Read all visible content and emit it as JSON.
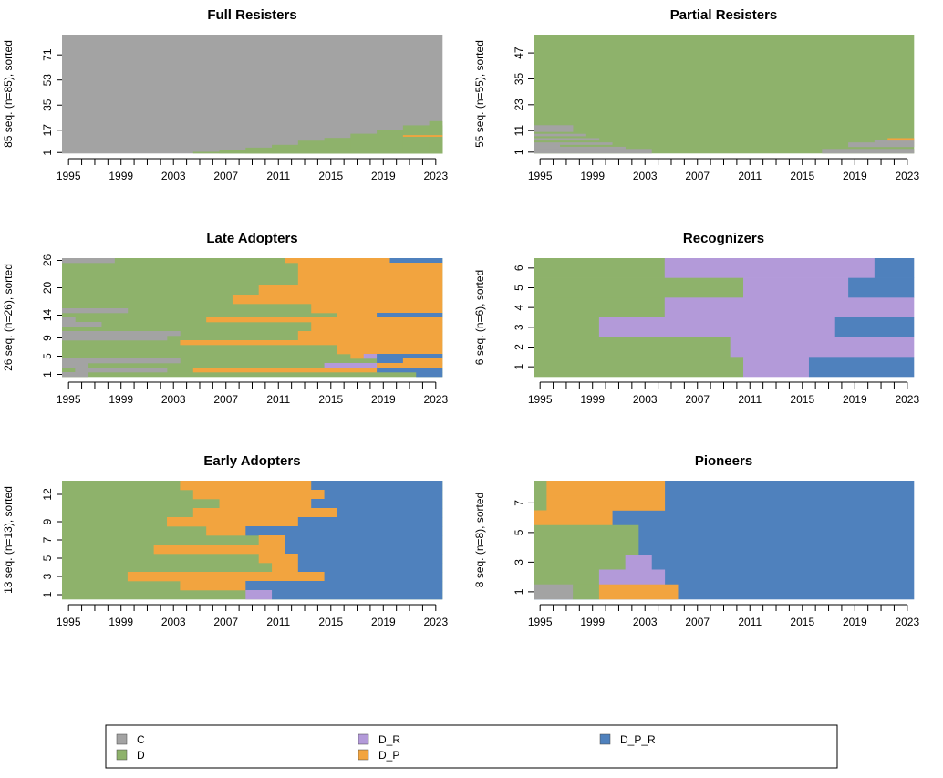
{
  "state_colors": {
    "C": "#a3a3a3",
    "D": "#8eb26b",
    "D_R": "#b39ad9",
    "D_P": "#f2a43f",
    "D_P_R": "#4f81bd"
  },
  "legend": {
    "items": [
      "C",
      "D",
      "D_R",
      "D_P",
      "D_P_R"
    ]
  },
  "chart_data": [
    {
      "type": "heatmap",
      "title": "Full Resisters",
      "ylabel": "85 seq. (n=85), sorted",
      "n_seq": 85,
      "x_start": 1995,
      "x_end": 2023,
      "x_ticks": [
        "1995",
        "1999",
        "2003",
        "2007",
        "2011",
        "2015",
        "2019",
        "2023"
      ],
      "y_ticks": [
        1,
        17,
        35,
        53,
        71
      ],
      "blocks": [
        {
          "x0": 1995,
          "x1": 2024,
          "y0": 1,
          "y1": 85,
          "state": "C"
        },
        {
          "x0": 2005,
          "x1": 2024,
          "y0": 1,
          "y1": 1,
          "state": "D"
        },
        {
          "x0": 2007,
          "x1": 2024,
          "y0": 1,
          "y1": 2,
          "state": "D"
        },
        {
          "x0": 2009,
          "x1": 2024,
          "y0": 1,
          "y1": 4,
          "state": "D"
        },
        {
          "x0": 2011,
          "x1": 2024,
          "y0": 1,
          "y1": 6,
          "state": "D"
        },
        {
          "x0": 2013,
          "x1": 2024,
          "y0": 1,
          "y1": 9,
          "state": "D"
        },
        {
          "x0": 2015,
          "x1": 2024,
          "y0": 1,
          "y1": 11,
          "state": "D"
        },
        {
          "x0": 2017,
          "x1": 2024,
          "y0": 1,
          "y1": 14,
          "state": "D"
        },
        {
          "x0": 2019,
          "x1": 2024,
          "y0": 1,
          "y1": 17,
          "state": "D"
        },
        {
          "x0": 2021,
          "x1": 2024,
          "y0": 1,
          "y1": 20,
          "state": "D"
        },
        {
          "x0": 2023,
          "x1": 2024,
          "y0": 1,
          "y1": 23,
          "state": "D"
        },
        {
          "x0": 2021,
          "x1": 2024,
          "y0": 13,
          "y1": 13,
          "state": "D_P"
        }
      ]
    },
    {
      "type": "heatmap",
      "title": "Partial Resisters",
      "ylabel": "55 seq. (n=55), sorted",
      "n_seq": 55,
      "x_start": 1995,
      "x_end": 2023,
      "x_ticks": [
        "1995",
        "1999",
        "2003",
        "2007",
        "2011",
        "2015",
        "2019",
        "2023"
      ],
      "y_ticks": [
        1,
        11,
        23,
        35,
        47
      ],
      "blocks": [
        {
          "x0": 1995,
          "x1": 2024,
          "y0": 1,
          "y1": 55,
          "state": "D"
        },
        {
          "x0": 1995,
          "x1": 1998,
          "y0": 11,
          "y1": 13,
          "state": "C"
        },
        {
          "x0": 1995,
          "x1": 1999,
          "y0": 9,
          "y1": 9,
          "state": "C"
        },
        {
          "x0": 1995,
          "x1": 2000,
          "y0": 7,
          "y1": 7,
          "state": "C"
        },
        {
          "x0": 1995,
          "x1": 2001,
          "y0": 5,
          "y1": 5,
          "state": "C"
        },
        {
          "x0": 1995,
          "x1": 2002,
          "y0": 3,
          "y1": 3,
          "state": "C"
        },
        {
          "x0": 1995,
          "x1": 2004,
          "y0": 1,
          "y1": 2,
          "state": "C"
        },
        {
          "x0": 1995,
          "x1": 1997,
          "y0": 4,
          "y1": 4,
          "state": "C"
        },
        {
          "x0": 2017,
          "x1": 2024,
          "y0": 1,
          "y1": 2,
          "state": "C"
        },
        {
          "x0": 2019,
          "x1": 2024,
          "y0": 4,
          "y1": 5,
          "state": "C"
        },
        {
          "x0": 2021,
          "x1": 2024,
          "y0": 6,
          "y1": 6,
          "state": "C"
        },
        {
          "x0": 2022,
          "x1": 2024,
          "y0": 7,
          "y1": 7,
          "state": "D_P"
        }
      ]
    },
    {
      "type": "heatmap",
      "title": "Late Adopters",
      "ylabel": "26 seq. (n=26), sorted",
      "n_seq": 26,
      "x_start": 1995,
      "x_end": 2023,
      "x_ticks": [
        "1995",
        "1999",
        "2003",
        "2007",
        "2011",
        "2015",
        "2019",
        "2023"
      ],
      "y_ticks": [
        1,
        5,
        9,
        14,
        20,
        26
      ],
      "blocks": [
        {
          "x0": 1995,
          "x1": 2024,
          "y0": 1,
          "y1": 26,
          "state": "D"
        },
        {
          "x0": 1995,
          "x1": 1999,
          "y0": 26,
          "y1": 26,
          "state": "C"
        },
        {
          "x0": 1995,
          "x1": 2000,
          "y0": 15,
          "y1": 15,
          "state": "C"
        },
        {
          "x0": 1995,
          "x1": 1996,
          "y0": 13,
          "y1": 13,
          "state": "C"
        },
        {
          "x0": 1995,
          "x1": 1998,
          "y0": 12,
          "y1": 12,
          "state": "C"
        },
        {
          "x0": 1995,
          "x1": 2004,
          "y0": 10,
          "y1": 10,
          "state": "C"
        },
        {
          "x0": 1995,
          "x1": 2003,
          "y0": 9,
          "y1": 9,
          "state": "C"
        },
        {
          "x0": 1995,
          "x1": 2004,
          "y0": 4,
          "y1": 4,
          "state": "C"
        },
        {
          "x0": 1995,
          "x1": 1997,
          "y0": 3,
          "y1": 3,
          "state": "C"
        },
        {
          "x0": 1996,
          "x1": 2003,
          "y0": 2,
          "y1": 2,
          "state": "C"
        },
        {
          "x0": 1995,
          "x1": 1997,
          "y0": 1,
          "y1": 1,
          "state": "C"
        },
        {
          "x0": 2012,
          "x1": 2020,
          "y0": 26,
          "y1": 26,
          "state": "D_P"
        },
        {
          "x0": 2020,
          "x1": 2024,
          "y0": 26,
          "y1": 26,
          "state": "D_P_R"
        },
        {
          "x0": 2013,
          "x1": 2024,
          "y0": 21,
          "y1": 25,
          "state": "D_P"
        },
        {
          "x0": 2010,
          "x1": 2024,
          "y0": 19,
          "y1": 20,
          "state": "D_P"
        },
        {
          "x0": 2008,
          "x1": 2024,
          "y0": 17,
          "y1": 18,
          "state": "D_P"
        },
        {
          "x0": 2014,
          "x1": 2024,
          "y0": 15,
          "y1": 16,
          "state": "D_P"
        },
        {
          "x0": 2016,
          "x1": 2019,
          "y0": 14,
          "y1": 14,
          "state": "D_P"
        },
        {
          "x0": 2019,
          "x1": 2024,
          "y0": 14,
          "y1": 14,
          "state": "D_P_R"
        },
        {
          "x0": 2006,
          "x1": 2024,
          "y0": 13,
          "y1": 13,
          "state": "D_P"
        },
        {
          "x0": 2014,
          "x1": 2024,
          "y0": 11,
          "y1": 12,
          "state": "D_P"
        },
        {
          "x0": 2013,
          "x1": 2024,
          "y0": 9,
          "y1": 10,
          "state": "D_P"
        },
        {
          "x0": 2004,
          "x1": 2024,
          "y0": 8,
          "y1": 8,
          "state": "D_P"
        },
        {
          "x0": 2016,
          "x1": 2024,
          "y0": 6,
          "y1": 7,
          "state": "D_P"
        },
        {
          "x0": 2017,
          "x1": 2018,
          "y0": 5,
          "y1": 5,
          "state": "D_P"
        },
        {
          "x0": 2018,
          "x1": 2019,
          "y0": 5,
          "y1": 5,
          "state": "D_R"
        },
        {
          "x0": 2019,
          "x1": 2024,
          "y0": 5,
          "y1": 5,
          "state": "D_P_R"
        },
        {
          "x0": 2019,
          "x1": 2021,
          "y0": 4,
          "y1": 4,
          "state": "D_P_R"
        },
        {
          "x0": 2021,
          "x1": 2024,
          "y0": 4,
          "y1": 4,
          "state": "D_P"
        },
        {
          "x0": 2015,
          "x1": 2019,
          "y0": 3,
          "y1": 3,
          "state": "D_R"
        },
        {
          "x0": 2019,
          "x1": 2024,
          "y0": 3,
          "y1": 3,
          "state": "D_P"
        },
        {
          "x0": 2005,
          "x1": 2019,
          "y0": 2,
          "y1": 2,
          "state": "D_P"
        },
        {
          "x0": 2019,
          "x1": 2024,
          "y0": 2,
          "y1": 2,
          "state": "D_P_R"
        },
        {
          "x0": 2022,
          "x1": 2024,
          "y0": 1,
          "y1": 1,
          "state": "D_P_R"
        }
      ]
    },
    {
      "type": "heatmap",
      "title": "Recognizers",
      "ylabel": "6 seq. (n=6), sorted",
      "n_seq": 6,
      "x_start": 1995,
      "x_end": 2023,
      "x_ticks": [
        "1995",
        "1999",
        "2003",
        "2007",
        "2011",
        "2015",
        "2019",
        "2023"
      ],
      "y_ticks": [
        1,
        2,
        3,
        4,
        5,
        6
      ],
      "blocks": [
        {
          "x0": 1995,
          "x1": 2005,
          "y0": 6,
          "y1": 6,
          "state": "D"
        },
        {
          "x0": 2005,
          "x1": 2021,
          "y0": 6,
          "y1": 6,
          "state": "D_R"
        },
        {
          "x0": 2021,
          "x1": 2024,
          "y0": 6,
          "y1": 6,
          "state": "D_P_R"
        },
        {
          "x0": 1995,
          "x1": 2011,
          "y0": 5,
          "y1": 5,
          "state": "D"
        },
        {
          "x0": 2011,
          "x1": 2019,
          "y0": 5,
          "y1": 5,
          "state": "D_R"
        },
        {
          "x0": 2019,
          "x1": 2024,
          "y0": 5,
          "y1": 5,
          "state": "D_P_R"
        },
        {
          "x0": 1995,
          "x1": 2005,
          "y0": 4,
          "y1": 4,
          "state": "D"
        },
        {
          "x0": 2005,
          "x1": 2024,
          "y0": 4,
          "y1": 4,
          "state": "D_R"
        },
        {
          "x0": 1995,
          "x1": 2000,
          "y0": 3,
          "y1": 3,
          "state": "D"
        },
        {
          "x0": 2000,
          "x1": 2018,
          "y0": 3,
          "y1": 3,
          "state": "D_R"
        },
        {
          "x0": 2018,
          "x1": 2024,
          "y0": 3,
          "y1": 3,
          "state": "D_P_R"
        },
        {
          "x0": 1995,
          "x1": 2010,
          "y0": 2,
          "y1": 2,
          "state": "D"
        },
        {
          "x0": 2010,
          "x1": 2024,
          "y0": 2,
          "y1": 2,
          "state": "D_R"
        },
        {
          "x0": 1995,
          "x1": 2011,
          "y0": 1,
          "y1": 1,
          "state": "D"
        },
        {
          "x0": 2011,
          "x1": 2016,
          "y0": 1,
          "y1": 1,
          "state": "D_R"
        },
        {
          "x0": 2016,
          "x1": 2024,
          "y0": 1,
          "y1": 1,
          "state": "D_P_R"
        }
      ]
    },
    {
      "type": "heatmap",
      "title": "Early Adopters",
      "ylabel": "13 seq. (n=13), sorted",
      "n_seq": 13,
      "x_start": 1995,
      "x_end": 2023,
      "x_ticks": [
        "1995",
        "1999",
        "2003",
        "2007",
        "2011",
        "2015",
        "2019",
        "2023"
      ],
      "y_ticks": [
        1,
        3,
        5,
        7,
        9,
        12
      ],
      "blocks": [
        {
          "x0": 1995,
          "x1": 2024,
          "y0": 1,
          "y1": 13,
          "state": "D"
        },
        {
          "x0": 2004,
          "x1": 2014,
          "y0": 13,
          "y1": 13,
          "state": "D_P"
        },
        {
          "x0": 2014,
          "x1": 2024,
          "y0": 13,
          "y1": 13,
          "state": "D_P_R"
        },
        {
          "x0": 2005,
          "x1": 2015,
          "y0": 12,
          "y1": 12,
          "state": "D_P"
        },
        {
          "x0": 2015,
          "x1": 2024,
          "y0": 12,
          "y1": 12,
          "state": "D_P_R"
        },
        {
          "x0": 2007,
          "x1": 2014,
          "y0": 11,
          "y1": 11,
          "state": "D_P"
        },
        {
          "x0": 2014,
          "x1": 2024,
          "y0": 11,
          "y1": 11,
          "state": "D_P_R"
        },
        {
          "x0": 2005,
          "x1": 2016,
          "y0": 10,
          "y1": 10,
          "state": "D_P"
        },
        {
          "x0": 2016,
          "x1": 2024,
          "y0": 10,
          "y1": 10,
          "state": "D_P_R"
        },
        {
          "x0": 2003,
          "x1": 2013,
          "y0": 9,
          "y1": 9,
          "state": "D_P"
        },
        {
          "x0": 2013,
          "x1": 2024,
          "y0": 9,
          "y1": 9,
          "state": "D_P_R"
        },
        {
          "x0": 2006,
          "x1": 2009,
          "y0": 8,
          "y1": 8,
          "state": "D_P"
        },
        {
          "x0": 2009,
          "x1": 2024,
          "y0": 8,
          "y1": 8,
          "state": "D_P_R"
        },
        {
          "x0": 2010,
          "x1": 2012,
          "y0": 7,
          "y1": 7,
          "state": "D_P"
        },
        {
          "x0": 2012,
          "x1": 2024,
          "y0": 7,
          "y1": 7,
          "state": "D_P_R"
        },
        {
          "x0": 2002,
          "x1": 2012,
          "y0": 6,
          "y1": 6,
          "state": "D_P"
        },
        {
          "x0": 2012,
          "x1": 2024,
          "y0": 6,
          "y1": 6,
          "state": "D_P_R"
        },
        {
          "x0": 2010,
          "x1": 2013,
          "y0": 5,
          "y1": 5,
          "state": "D_P"
        },
        {
          "x0": 2013,
          "x1": 2024,
          "y0": 5,
          "y1": 5,
          "state": "D_P_R"
        },
        {
          "x0": 2011,
          "x1": 2013,
          "y0": 4,
          "y1": 4,
          "state": "D_P"
        },
        {
          "x0": 2013,
          "x1": 2024,
          "y0": 4,
          "y1": 4,
          "state": "D_P_R"
        },
        {
          "x0": 2000,
          "x1": 2015,
          "y0": 3,
          "y1": 3,
          "state": "D_P"
        },
        {
          "x0": 2015,
          "x1": 2024,
          "y0": 3,
          "y1": 3,
          "state": "D_P_R"
        },
        {
          "x0": 2004,
          "x1": 2009,
          "y0": 2,
          "y1": 2,
          "state": "D_P"
        },
        {
          "x0": 2009,
          "x1": 2024,
          "y0": 2,
          "y1": 2,
          "state": "D_P_R"
        },
        {
          "x0": 2009,
          "x1": 2011,
          "y0": 1,
          "y1": 1,
          "state": "D_R"
        },
        {
          "x0": 2011,
          "x1": 2024,
          "y0": 1,
          "y1": 1,
          "state": "D_P_R"
        }
      ]
    },
    {
      "type": "heatmap",
      "title": "Pioneers",
      "ylabel": "8 seq. (n=8), sorted",
      "n_seq": 8,
      "x_start": 1995,
      "x_end": 2023,
      "x_ticks": [
        "1995",
        "1999",
        "2003",
        "2007",
        "2011",
        "2015",
        "2019",
        "2023"
      ],
      "y_ticks": [
        1,
        3,
        5,
        7
      ],
      "blocks": [
        {
          "x0": 1995,
          "x1": 2024,
          "y0": 1,
          "y1": 8,
          "state": "D_P_R"
        },
        {
          "x0": 1995,
          "x1": 1996,
          "y0": 8,
          "y1": 8,
          "state": "D"
        },
        {
          "x0": 1996,
          "x1": 2005,
          "y0": 8,
          "y1": 8,
          "state": "D_P"
        },
        {
          "x0": 1995,
          "x1": 1996,
          "y0": 7,
          "y1": 7,
          "state": "D"
        },
        {
          "x0": 1996,
          "x1": 2005,
          "y0": 7,
          "y1": 7,
          "state": "D_P"
        },
        {
          "x0": 1995,
          "x1": 2001,
          "y0": 6,
          "y1": 6,
          "state": "D_P"
        },
        {
          "x0": 1995,
          "x1": 2003,
          "y0": 4,
          "y1": 5,
          "state": "D"
        },
        {
          "x0": 1995,
          "x1": 2002,
          "y0": 3,
          "y1": 3,
          "state": "D"
        },
        {
          "x0": 2002,
          "x1": 2004,
          "y0": 3,
          "y1": 3,
          "state": "D_R"
        },
        {
          "x0": 1995,
          "x1": 2000,
          "y0": 2,
          "y1": 2,
          "state": "D"
        },
        {
          "x0": 2000,
          "x1": 2005,
          "y0": 2,
          "y1": 2,
          "state": "D_R"
        },
        {
          "x0": 1995,
          "x1": 1998,
          "y0": 1,
          "y1": 1,
          "state": "C"
        },
        {
          "x0": 1998,
          "x1": 2000,
          "y0": 1,
          "y1": 1,
          "state": "D"
        },
        {
          "x0": 2000,
          "x1": 2006,
          "y0": 1,
          "y1": 1,
          "state": "D_P"
        }
      ]
    }
  ]
}
